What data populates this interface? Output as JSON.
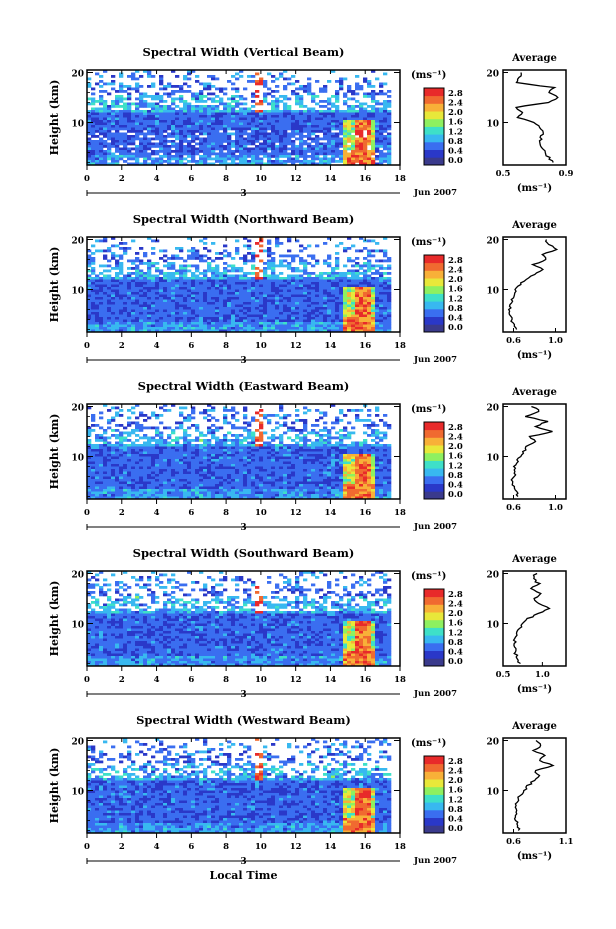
{
  "common": {
    "date_label": "Jun 2007",
    "date_mark": "3",
    "unit_label": "(ms⁻¹)",
    "avg_title": "Average",
    "height_label": "Height (km)",
    "time_ticks": [
      "0",
      "2",
      "4",
      "6",
      "8",
      "10",
      "12",
      "14",
      "16",
      "18"
    ],
    "height_ticks": [
      "10",
      "20"
    ],
    "colorbar_ticks": [
      "0.0",
      "0.4",
      "0.8",
      "1.2",
      "1.6",
      "2.0",
      "2.4",
      "2.8"
    ],
    "colorbar_colors": [
      "#3a3a8c",
      "#2a38c8",
      "#3a6ef0",
      "#38b8f0",
      "#3ee0c8",
      "#8ef060",
      "#e8e83a",
      "#f8b038",
      "#f06a30",
      "#e82a2a"
    ],
    "x_axis_label": "Local Time"
  },
  "chart_data": [
    {
      "type": "heatmap",
      "title": "Spectral Width (Vertical Beam)",
      "xlabel": "",
      "ylabel": "Height (km)",
      "xlim": [
        0,
        18
      ],
      "ylim": [
        1.5,
        20.5
      ],
      "colorbar": {
        "label": "(ms⁻¹)",
        "range": [
          0.0,
          2.8
        ]
      },
      "average_profile": {
        "title": "Average",
        "xlabel": "(ms⁻¹)",
        "xlim": [
          0.5,
          0.9
        ],
        "xticks": [
          "0.5",
          "0.9"
        ],
        "ylim": [
          1.5,
          20.5
        ],
        "heights": [
          2,
          3,
          4,
          5,
          6,
          7,
          8,
          9,
          10,
          11,
          12,
          13,
          14,
          15,
          16,
          17,
          18,
          19,
          20
        ],
        "values": [
          0.82,
          0.79,
          0.76,
          0.75,
          0.74,
          0.74,
          0.75,
          0.73,
          0.7,
          0.6,
          0.62,
          0.58,
          0.78,
          0.85,
          0.8,
          0.82,
          0.58,
          0.6,
          0.62
        ]
      }
    },
    {
      "type": "heatmap",
      "title": "Spectral Width (Northward Beam)",
      "xlabel": "",
      "ylabel": "Height (km)",
      "xlim": [
        0,
        18
      ],
      "ylim": [
        1.5,
        20.5
      ],
      "colorbar": {
        "label": "(ms⁻¹)",
        "range": [
          0.0,
          2.8
        ]
      },
      "average_profile": {
        "title": "Average",
        "xlabel": "(ms⁻¹)",
        "xlim": [
          0.5,
          1.1
        ],
        "xticks": [
          "0.6",
          "1.0"
        ],
        "ylim": [
          1.5,
          20.5
        ],
        "heights": [
          2,
          3,
          4,
          5,
          6,
          7,
          8,
          9,
          10,
          11,
          12,
          13,
          14,
          15,
          16,
          17,
          18,
          19,
          20
        ],
        "values": [
          0.62,
          0.6,
          0.58,
          0.57,
          0.56,
          0.57,
          0.58,
          0.6,
          0.62,
          0.66,
          0.72,
          0.8,
          0.88,
          0.78,
          0.92,
          0.86,
          1.02,
          0.95,
          0.9
        ]
      }
    },
    {
      "type": "heatmap",
      "title": "Spectral Width (Eastward Beam)",
      "xlabel": "",
      "ylabel": "Height (km)",
      "xlim": [
        0,
        18
      ],
      "ylim": [
        1.5,
        20.5
      ],
      "colorbar": {
        "label": "(ms⁻¹)",
        "range": [
          0.0,
          2.8
        ]
      },
      "average_profile": {
        "title": "Average",
        "xlabel": "",
        "xlim": [
          0.5,
          1.1
        ],
        "xticks": [
          "0.6",
          "1.0"
        ],
        "ylim": [
          1.5,
          20.5
        ],
        "heights": [
          2,
          3,
          4,
          5,
          6,
          7,
          8,
          9,
          10,
          11,
          12,
          13,
          14,
          15,
          16,
          17,
          18,
          19,
          20
        ],
        "values": [
          0.64,
          0.62,
          0.6,
          0.59,
          0.6,
          0.62,
          0.6,
          0.63,
          0.66,
          0.7,
          0.72,
          0.82,
          0.75,
          0.98,
          0.8,
          0.92,
          0.72,
          0.85,
          0.78
        ]
      }
    },
    {
      "type": "heatmap",
      "title": "Spectral Width (Southward Beam)",
      "xlabel": "",
      "ylabel": "Height (km)",
      "xlim": [
        0,
        18
      ],
      "ylim": [
        1.5,
        20.5
      ],
      "colorbar": {
        "label": "(ms⁻¹)",
        "range": [
          0.0,
          2.8
        ]
      },
      "average_profile": {
        "title": "Average",
        "xlabel": "(ms⁻¹)",
        "xlim": [
          0.5,
          1.3
        ],
        "xticks": [
          "0.5",
          "1.0"
        ],
        "ylim": [
          1.5,
          20.5
        ],
        "heights": [
          2,
          3,
          4,
          5,
          6,
          7,
          8,
          9,
          10,
          11,
          12,
          13,
          14,
          15,
          16,
          17,
          18,
          19,
          20
        ],
        "values": [
          0.72,
          0.68,
          0.66,
          0.65,
          0.64,
          0.66,
          0.68,
          0.72,
          0.76,
          0.82,
          0.95,
          1.1,
          0.95,
          0.9,
          0.98,
          0.85,
          0.95,
          0.88,
          0.92
        ]
      }
    },
    {
      "type": "heatmap",
      "title": "Spectral Width (Westward Beam)",
      "xlabel": "Local Time",
      "ylabel": "Height (km)",
      "xlim": [
        0,
        18
      ],
      "ylim": [
        1.5,
        20.5
      ],
      "colorbar": {
        "label": "(ms⁻¹)",
        "range": [
          0.0,
          2.8
        ]
      },
      "average_profile": {
        "title": "Average",
        "xlabel": "(ms⁻¹)",
        "xlim": [
          0.5,
          1.1
        ],
        "xticks": [
          "0.6",
          "1.1"
        ],
        "ylim": [
          1.5,
          20.5
        ],
        "heights": [
          2,
          3,
          4,
          5,
          6,
          7,
          8,
          9,
          10,
          11,
          12,
          13,
          14,
          15,
          16,
          17,
          18,
          19,
          20
        ],
        "values": [
          0.66,
          0.64,
          0.62,
          0.62,
          0.63,
          0.62,
          0.64,
          0.66,
          0.7,
          0.74,
          0.8,
          0.84,
          0.8,
          0.98,
          0.85,
          0.9,
          0.8,
          0.86,
          0.82
        ]
      }
    }
  ]
}
